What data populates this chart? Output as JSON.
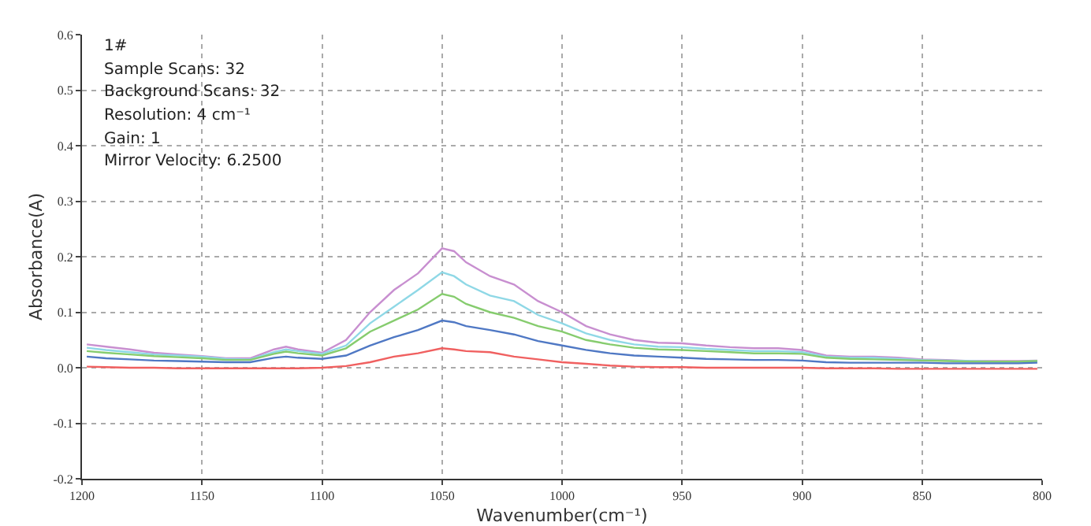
{
  "chart_data": {
    "type": "line",
    "xlabel": "Wavenumber(cm⁻¹)",
    "ylabel": "Absorbance(A)",
    "annotations": [
      "1#",
      "Sample Scans: 32",
      "Background Scans: 32",
      "Resolution: 4 cm⁻¹",
      "Gain: 1",
      "Mirror Velocity: 6.2500"
    ],
    "x": [
      1198,
      1190,
      1180,
      1170,
      1160,
      1150,
      1140,
      1130,
      1120,
      1115,
      1110,
      1100,
      1090,
      1080,
      1070,
      1060,
      1050,
      1045,
      1040,
      1030,
      1020,
      1010,
      1000,
      990,
      980,
      970,
      960,
      950,
      940,
      930,
      920,
      910,
      900,
      890,
      880,
      870,
      860,
      850,
      840,
      830,
      820,
      810,
      802
    ],
    "series": [
      {
        "color": "#c88fd0",
        "values": [
          0.042,
          0.038,
          0.033,
          0.027,
          0.024,
          0.021,
          0.017,
          0.017,
          0.033,
          0.038,
          0.033,
          0.027,
          0.05,
          0.1,
          0.14,
          0.17,
          0.215,
          0.21,
          0.19,
          0.165,
          0.15,
          0.12,
          0.1,
          0.075,
          0.06,
          0.05,
          0.045,
          0.044,
          0.04,
          0.037,
          0.035,
          0.035,
          0.032,
          0.022,
          0.02,
          0.02,
          0.018,
          0.015,
          0.014,
          0.012,
          0.012,
          0.012,
          0.013
        ]
      },
      {
        "color": "#8fd8e6",
        "values": [
          0.036,
          0.032,
          0.028,
          0.024,
          0.022,
          0.02,
          0.016,
          0.015,
          0.028,
          0.033,
          0.03,
          0.025,
          0.04,
          0.08,
          0.11,
          0.14,
          0.172,
          0.165,
          0.15,
          0.13,
          0.12,
          0.095,
          0.08,
          0.062,
          0.05,
          0.042,
          0.038,
          0.037,
          0.034,
          0.032,
          0.03,
          0.03,
          0.028,
          0.02,
          0.018,
          0.018,
          0.016,
          0.014,
          0.013,
          0.012,
          0.011,
          0.011,
          0.012
        ]
      },
      {
        "color": "#86cc6e",
        "values": [
          0.03,
          0.027,
          0.024,
          0.021,
          0.019,
          0.017,
          0.014,
          0.014,
          0.025,
          0.029,
          0.026,
          0.022,
          0.035,
          0.065,
          0.085,
          0.105,
          0.133,
          0.128,
          0.115,
          0.1,
          0.09,
          0.075,
          0.065,
          0.05,
          0.042,
          0.036,
          0.033,
          0.032,
          0.03,
          0.028,
          0.026,
          0.026,
          0.025,
          0.018,
          0.016,
          0.015,
          0.014,
          0.013,
          0.012,
          0.011,
          0.011,
          0.011,
          0.012
        ]
      },
      {
        "color": "#4f78c4",
        "values": [
          0.02,
          0.017,
          0.015,
          0.013,
          0.012,
          0.011,
          0.01,
          0.01,
          0.018,
          0.02,
          0.018,
          0.016,
          0.022,
          0.04,
          0.055,
          0.068,
          0.085,
          0.082,
          0.075,
          0.068,
          0.06,
          0.048,
          0.04,
          0.032,
          0.026,
          0.022,
          0.02,
          0.018,
          0.016,
          0.015,
          0.014,
          0.014,
          0.013,
          0.01,
          0.009,
          0.009,
          0.009,
          0.009,
          0.008,
          0.008,
          0.008,
          0.008,
          0.009
        ]
      },
      {
        "color": "#f06060",
        "values": [
          0.002,
          0.001,
          0,
          0,
          -0.001,
          -0.001,
          -0.001,
          -0.001,
          -0.001,
          -0.001,
          -0.001,
          0,
          0.003,
          0.01,
          0.02,
          0.026,
          0.035,
          0.033,
          0.03,
          0.028,
          0.02,
          0.015,
          0.01,
          0.007,
          0.004,
          0.002,
          0.001,
          0.001,
          0,
          0,
          0,
          0,
          0,
          -0.001,
          -0.001,
          -0.001,
          -0.002,
          -0.002,
          -0.002,
          -0.002,
          -0.002,
          -0.002,
          -0.002
        ]
      }
    ],
    "xlim": [
      1200,
      800
    ],
    "ylim": [
      -0.2,
      0.6
    ],
    "xticks": [
      1200,
      1150,
      1100,
      1050,
      1000,
      950,
      900,
      850,
      800
    ],
    "yticks": [
      {
        "value": -0.2,
        "label": "-0.2"
      },
      {
        "value": -0.1,
        "label": "-0.1"
      },
      {
        "value": 0,
        "label": "0.0"
      },
      {
        "value": 0.1,
        "label": "0.1"
      },
      {
        "value": 0.2,
        "label": "0.2"
      },
      {
        "value": 0.3,
        "label": "0.3"
      },
      {
        "value": 0.4,
        "label": "0.4"
      },
      {
        "value": 0.5,
        "label": "0.5"
      },
      {
        "value": 0.6,
        "label": "0.6"
      }
    ],
    "grid": true
  }
}
